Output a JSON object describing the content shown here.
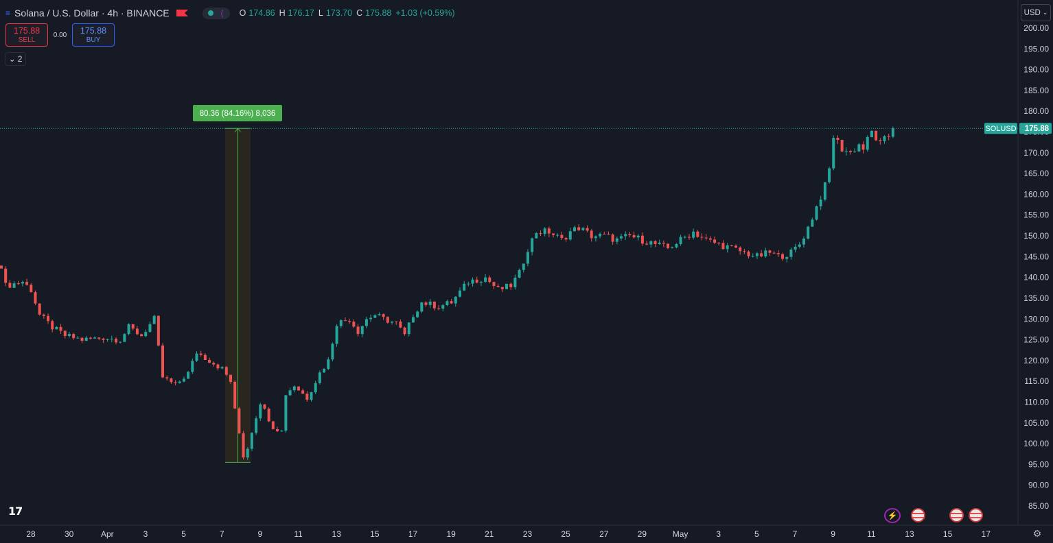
{
  "header": {
    "menu_icon": "list-icon",
    "title": "Solana / U.S. Dollar · 4h · BINANCE",
    "flag_icon": "flag-icon",
    "ohlc": [
      {
        "key": "O",
        "value": "174.86"
      },
      {
        "key": "H",
        "value": "176.17"
      },
      {
        "key": "L",
        "value": "173.70"
      },
      {
        "key": "C",
        "value": "175.88"
      },
      {
        "key": "",
        "value": "+1.03 (+0.59%)"
      }
    ]
  },
  "trade": {
    "sell_price": "175.88",
    "sell_label": "SELL",
    "spread": "0.00",
    "buy_price": "175.88",
    "buy_label": "BUY"
  },
  "indicators_collapse": {
    "count": "2"
  },
  "currency_button": "USD",
  "price_tag": {
    "symbol": "SOLUSD",
    "price": "175.88"
  },
  "measure_label": "80.36 (84.16%) 8,036",
  "colors": {
    "background": "#161a25",
    "up": "#26a69a",
    "down": "#ef5350",
    "measure_fill": "#2b2820",
    "measure_line": "#4caf50",
    "label_bg": "#4caf50"
  },
  "y_axis_labels": [
    "200.00",
    "195.00",
    "190.00",
    "185.00",
    "180.00",
    "175.00",
    "170.00",
    "165.00",
    "160.00",
    "155.00",
    "150.00",
    "145.00",
    "140.00",
    "135.00",
    "130.00",
    "125.00",
    "120.00",
    "115.00",
    "110.00",
    "105.00",
    "100.00",
    "95.00",
    "90.00",
    "85.00"
  ],
  "x_axis_labels": [
    "28",
    "30",
    "Apr",
    "3",
    "5",
    "7",
    "9",
    "11",
    "13",
    "15",
    "17",
    "19",
    "21",
    "23",
    "25",
    "27",
    "29",
    "May",
    "3",
    "5",
    "7",
    "9",
    "11",
    "13",
    "15",
    "17"
  ],
  "chart_data": {
    "type": "candlestick",
    "symbol": "SOLUSD",
    "interval": "4h",
    "exchange": "BINANCE",
    "ylim": [
      82,
      203
    ],
    "current_price": 175.88,
    "measure": {
      "from": 95.5,
      "to": 175.88,
      "change": "80.36",
      "change_pct": "84.16%",
      "ticks": "8,036"
    },
    "path_anchors": [
      [
        0,
        143
      ],
      [
        1,
        138
      ],
      [
        5,
        139
      ],
      [
        7,
        137
      ],
      [
        9,
        131
      ],
      [
        12,
        128
      ],
      [
        15,
        126
      ],
      [
        19,
        125
      ],
      [
        24,
        125.5
      ],
      [
        28,
        125
      ],
      [
        30,
        128
      ],
      [
        33,
        126
      ],
      [
        36,
        130
      ],
      [
        37,
        123
      ],
      [
        38,
        116
      ],
      [
        41,
        114
      ],
      [
        44,
        117
      ],
      [
        46,
        122
      ],
      [
        49,
        120
      ],
      [
        52,
        118
      ],
      [
        54,
        115
      ],
      [
        55,
        108
      ],
      [
        57,
        97
      ],
      [
        58,
        99
      ],
      [
        59,
        103
      ],
      [
        61,
        110
      ],
      [
        64,
        104
      ],
      [
        66,
        103
      ],
      [
        67,
        112
      ],
      [
        69,
        114
      ],
      [
        72,
        111
      ],
      [
        75,
        117
      ],
      [
        77,
        120
      ],
      [
        79,
        129
      ],
      [
        82,
        130
      ],
      [
        84,
        127
      ],
      [
        86,
        130
      ],
      [
        88,
        131
      ],
      [
        90,
        130
      ],
      [
        93,
        129
      ],
      [
        95,
        126
      ],
      [
        97,
        131
      ],
      [
        99,
        134
      ],
      [
        103,
        133
      ],
      [
        106,
        134
      ],
      [
        110,
        139
      ],
      [
        114,
        140
      ],
      [
        117,
        137
      ],
      [
        120,
        138
      ],
      [
        122,
        141
      ],
      [
        124,
        147
      ],
      [
        126,
        151
      ],
      [
        129,
        151
      ],
      [
        132,
        149
      ],
      [
        134,
        151
      ],
      [
        136,
        152
      ],
      [
        139,
        150
      ],
      [
        142,
        150
      ],
      [
        145,
        149
      ],
      [
        148,
        150
      ],
      [
        151,
        149
      ],
      [
        154,
        148
      ],
      [
        157,
        147
      ],
      [
        160,
        149
      ],
      [
        163,
        151
      ],
      [
        166,
        149
      ],
      [
        169,
        148
      ],
      [
        172,
        147
      ],
      [
        175,
        146
      ],
      [
        178,
        145
      ],
      [
        181,
        146
      ],
      [
        183,
        145
      ],
      [
        186,
        146
      ],
      [
        188,
        148
      ],
      [
        190,
        152
      ],
      [
        192,
        157
      ],
      [
        194,
        162
      ],
      [
        195,
        166
      ],
      [
        196,
        174
      ],
      [
        198,
        171
      ],
      [
        200,
        170
      ],
      [
        202,
        172
      ],
      [
        203,
        171
      ],
      [
        205,
        175
      ],
      [
        207,
        172
      ],
      [
        209,
        174
      ],
      [
        210,
        175.88
      ]
    ],
    "candle_count": 211
  }
}
